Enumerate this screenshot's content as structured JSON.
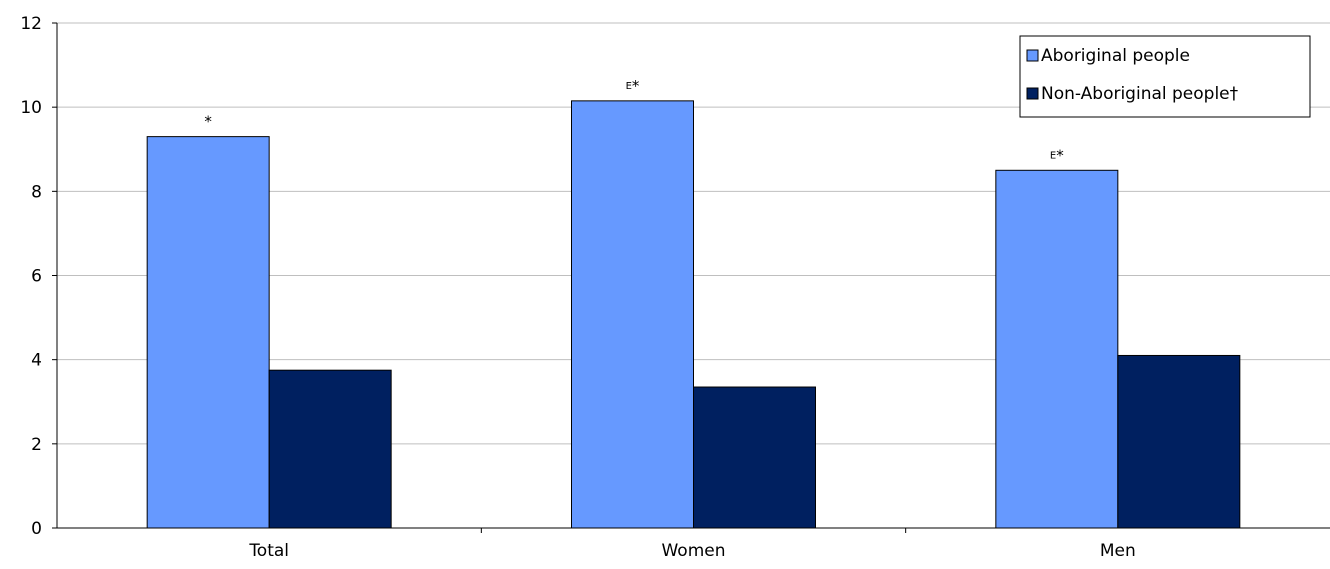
{
  "chart_data": {
    "type": "bar",
    "categories": [
      "Total",
      "Women",
      "Men"
    ],
    "series": [
      {
        "name": "Aboriginal people",
        "color": "#6699ff",
        "values": [
          9.3,
          10.15,
          8.5
        ],
        "annotations": [
          {
            "sup": "",
            "mark": "*"
          },
          {
            "sup": "E",
            "mark": "*"
          },
          {
            "sup": "E",
            "mark": "*"
          }
        ]
      },
      {
        "name": "Non-Aboriginal people†",
        "color": "#002060",
        "values": [
          3.75,
          3.35,
          4.1
        ],
        "annotations": [
          {
            "sup": "",
            "mark": ""
          },
          {
            "sup": "",
            "mark": ""
          },
          {
            "sup": "",
            "mark": ""
          }
        ]
      }
    ],
    "ylim": [
      0,
      12
    ],
    "yticks": [
      "0",
      "2",
      "4",
      "6",
      "8",
      "10",
      "12"
    ],
    "grid": true,
    "legend_position": "top-right",
    "title": "",
    "xlabel": "",
    "ylabel": ""
  }
}
